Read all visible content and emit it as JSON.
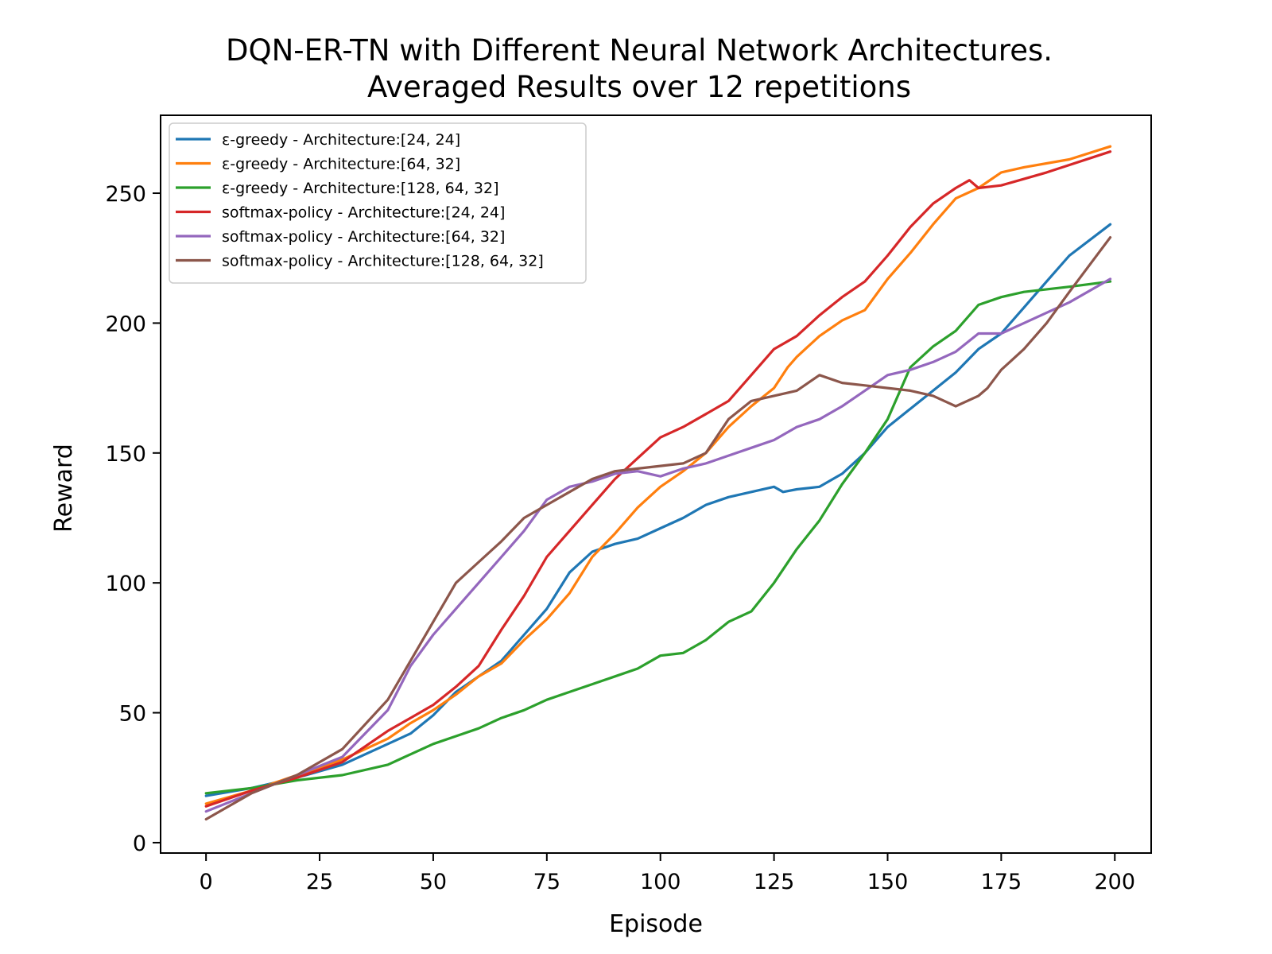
{
  "chart_data": {
    "type": "line",
    "title": "DQN-ER-TN with Different Neural Network Architectures.",
    "subtitle": "Averaged Results over 12 repetitions",
    "xlabel": "Episode",
    "ylabel": "Reward",
    "xlim": [
      -10,
      208
    ],
    "ylim": [
      -4,
      280
    ],
    "xticks": [
      0,
      25,
      50,
      75,
      100,
      125,
      150,
      175,
      200
    ],
    "yticks": [
      0,
      50,
      100,
      150,
      200,
      250
    ],
    "grid": false,
    "legend_position": "top-left",
    "series": [
      {
        "name": "ε-greedy - Architecture:[24, 24]",
        "color": "#1f77b4",
        "points": [
          [
            0,
            18
          ],
          [
            10,
            21
          ],
          [
            20,
            25
          ],
          [
            30,
            30
          ],
          [
            40,
            38
          ],
          [
            45,
            42
          ],
          [
            50,
            49
          ],
          [
            55,
            58
          ],
          [
            60,
            64
          ],
          [
            65,
            70
          ],
          [
            70,
            80
          ],
          [
            75,
            90
          ],
          [
            80,
            104
          ],
          [
            85,
            112
          ],
          [
            90,
            115
          ],
          [
            95,
            117
          ],
          [
            100,
            121
          ],
          [
            105,
            125
          ],
          [
            110,
            130
          ],
          [
            115,
            133
          ],
          [
            120,
            135
          ],
          [
            125,
            137
          ],
          [
            127,
            135
          ],
          [
            130,
            136
          ],
          [
            135,
            137
          ],
          [
            140,
            142
          ],
          [
            145,
            150
          ],
          [
            150,
            160
          ],
          [
            155,
            167
          ],
          [
            160,
            174
          ],
          [
            165,
            181
          ],
          [
            170,
            190
          ],
          [
            175,
            196
          ],
          [
            180,
            206
          ],
          [
            185,
            216
          ],
          [
            190,
            226
          ],
          [
            199,
            238
          ]
        ]
      },
      {
        "name": "ε-greedy - Architecture:[64, 32]",
        "color": "#ff7f0e",
        "points": [
          [
            0,
            15
          ],
          [
            10,
            20
          ],
          [
            20,
            26
          ],
          [
            30,
            32
          ],
          [
            40,
            40
          ],
          [
            45,
            46
          ],
          [
            50,
            51
          ],
          [
            55,
            57
          ],
          [
            60,
            64
          ],
          [
            65,
            69
          ],
          [
            70,
            78
          ],
          [
            75,
            86
          ],
          [
            80,
            96
          ],
          [
            85,
            110
          ],
          [
            90,
            119
          ],
          [
            95,
            129
          ],
          [
            100,
            137
          ],
          [
            105,
            143
          ],
          [
            110,
            150
          ],
          [
            115,
            160
          ],
          [
            120,
            168
          ],
          [
            125,
            175
          ],
          [
            128,
            183
          ],
          [
            130,
            187
          ],
          [
            135,
            195
          ],
          [
            140,
            201
          ],
          [
            145,
            205
          ],
          [
            150,
            217
          ],
          [
            155,
            227
          ],
          [
            160,
            238
          ],
          [
            165,
            248
          ],
          [
            170,
            252
          ],
          [
            175,
            258
          ],
          [
            180,
            260
          ],
          [
            190,
            263
          ],
          [
            199,
            268
          ]
        ]
      },
      {
        "name": "ε-greedy - Architecture:[128, 64, 32]",
        "color": "#2ca02c",
        "points": [
          [
            0,
            19
          ],
          [
            10,
            21
          ],
          [
            20,
            24
          ],
          [
            30,
            26
          ],
          [
            40,
            30
          ],
          [
            45,
            34
          ],
          [
            50,
            38
          ],
          [
            55,
            41
          ],
          [
            60,
            44
          ],
          [
            65,
            48
          ],
          [
            70,
            51
          ],
          [
            75,
            55
          ],
          [
            80,
            58
          ],
          [
            85,
            61
          ],
          [
            90,
            64
          ],
          [
            95,
            67
          ],
          [
            100,
            72
          ],
          [
            105,
            73
          ],
          [
            110,
            78
          ],
          [
            115,
            85
          ],
          [
            120,
            89
          ],
          [
            125,
            100
          ],
          [
            130,
            113
          ],
          [
            135,
            124
          ],
          [
            140,
            138
          ],
          [
            145,
            150
          ],
          [
            150,
            163
          ],
          [
            155,
            183
          ],
          [
            160,
            191
          ],
          [
            165,
            197
          ],
          [
            170,
            207
          ],
          [
            175,
            210
          ],
          [
            180,
            212
          ],
          [
            190,
            214
          ],
          [
            199,
            216
          ]
        ]
      },
      {
        "name": "softmax-policy - Architecture:[24, 24]",
        "color": "#d62728",
        "points": [
          [
            0,
            14
          ],
          [
            10,
            20
          ],
          [
            20,
            25
          ],
          [
            30,
            31
          ],
          [
            40,
            43
          ],
          [
            45,
            48
          ],
          [
            50,
            53
          ],
          [
            55,
            60
          ],
          [
            60,
            68
          ],
          [
            65,
            82
          ],
          [
            70,
            95
          ],
          [
            75,
            110
          ],
          [
            80,
            120
          ],
          [
            85,
            130
          ],
          [
            90,
            140
          ],
          [
            95,
            148
          ],
          [
            100,
            156
          ],
          [
            105,
            160
          ],
          [
            110,
            165
          ],
          [
            115,
            170
          ],
          [
            120,
            180
          ],
          [
            125,
            190
          ],
          [
            130,
            195
          ],
          [
            135,
            203
          ],
          [
            140,
            210
          ],
          [
            145,
            216
          ],
          [
            150,
            226
          ],
          [
            155,
            237
          ],
          [
            160,
            246
          ],
          [
            165,
            252
          ],
          [
            168,
            255
          ],
          [
            170,
            252
          ],
          [
            175,
            253
          ],
          [
            185,
            258
          ],
          [
            199,
            266
          ]
        ]
      },
      {
        "name": "softmax-policy - Architecture:[64, 32]",
        "color": "#9467bd",
        "points": [
          [
            0,
            12
          ],
          [
            10,
            19
          ],
          [
            20,
            26
          ],
          [
            30,
            33
          ],
          [
            40,
            51
          ],
          [
            45,
            68
          ],
          [
            50,
            80
          ],
          [
            55,
            90
          ],
          [
            60,
            100
          ],
          [
            65,
            110
          ],
          [
            70,
            120
          ],
          [
            75,
            132
          ],
          [
            80,
            137
          ],
          [
            85,
            139
          ],
          [
            90,
            142
          ],
          [
            95,
            143
          ],
          [
            100,
            141
          ],
          [
            105,
            144
          ],
          [
            110,
            146
          ],
          [
            115,
            149
          ],
          [
            120,
            152
          ],
          [
            125,
            155
          ],
          [
            130,
            160
          ],
          [
            135,
            163
          ],
          [
            140,
            168
          ],
          [
            145,
            174
          ],
          [
            150,
            180
          ],
          [
            155,
            182
          ],
          [
            160,
            185
          ],
          [
            165,
            189
          ],
          [
            170,
            196
          ],
          [
            175,
            196
          ],
          [
            180,
            200
          ],
          [
            190,
            208
          ],
          [
            199,
            217
          ]
        ]
      },
      {
        "name": "softmax-policy - Architecture:[128, 64, 32]",
        "color": "#8c564b",
        "points": [
          [
            0,
            9
          ],
          [
            10,
            19
          ],
          [
            20,
            26
          ],
          [
            30,
            36
          ],
          [
            40,
            55
          ],
          [
            45,
            70
          ],
          [
            50,
            85
          ],
          [
            55,
            100
          ],
          [
            60,
            108
          ],
          [
            65,
            116
          ],
          [
            70,
            125
          ],
          [
            75,
            130
          ],
          [
            80,
            135
          ],
          [
            85,
            140
          ],
          [
            90,
            143
          ],
          [
            95,
            144
          ],
          [
            100,
            145
          ],
          [
            105,
            146
          ],
          [
            110,
            150
          ],
          [
            115,
            163
          ],
          [
            120,
            170
          ],
          [
            125,
            172
          ],
          [
            130,
            174
          ],
          [
            135,
            180
          ],
          [
            140,
            177
          ],
          [
            145,
            176
          ],
          [
            150,
            175
          ],
          [
            155,
            174
          ],
          [
            160,
            172
          ],
          [
            165,
            168
          ],
          [
            170,
            172
          ],
          [
            172,
            175
          ],
          [
            175,
            182
          ],
          [
            180,
            190
          ],
          [
            185,
            200
          ],
          [
            190,
            212
          ],
          [
            199,
            233
          ]
        ]
      }
    ]
  }
}
